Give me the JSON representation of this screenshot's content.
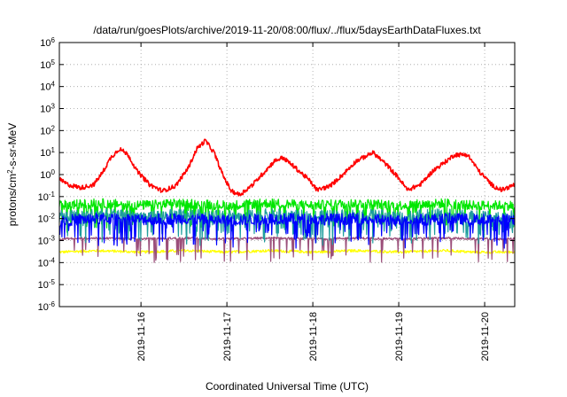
{
  "chart_data": {
    "type": "line",
    "title": "/data/run/goesPlots/archive/2019-11-20/08:00/flux/../flux/5daysEarthDataFluxes.txt",
    "xlabel": "Coordinated Universal Time (UTC)",
    "ylabel": {
      "base": "protons/cm",
      "sup": "2",
      "rest": "-s-sr-MeV"
    },
    "y_scale": "log",
    "ylim": [
      1e-06,
      1000000.0
    ],
    "y_ticks": [
      {
        "base": "10",
        "exp": "-6",
        "value": 1e-06
      },
      {
        "base": "10",
        "exp": "-5",
        "value": 1e-05
      },
      {
        "base": "10",
        "exp": "-4",
        "value": 0.0001
      },
      {
        "base": "10",
        "exp": "-3",
        "value": 0.001
      },
      {
        "base": "10",
        "exp": "-2",
        "value": 0.01
      },
      {
        "base": "10",
        "exp": "-1",
        "value": 0.1
      },
      {
        "base": "10",
        "exp": "0",
        "value": 1
      },
      {
        "base": "10",
        "exp": "1",
        "value": 10.0
      },
      {
        "base": "10",
        "exp": "2",
        "value": 100.0
      },
      {
        "base": "10",
        "exp": "3",
        "value": 1000.0
      },
      {
        "base": "10",
        "exp": "4",
        "value": 10000.0
      },
      {
        "base": "10",
        "exp": "5",
        "value": 100000.0
      },
      {
        "base": "10",
        "exp": "6",
        "value": 1000000.0
      }
    ],
    "x_ticks": [
      {
        "label": "2019-11-16",
        "day": 16
      },
      {
        "label": "2019-11-17",
        "day": 17
      },
      {
        "label": "2019-11-18",
        "day": 18
      },
      {
        "label": "2019-11-19",
        "day": 19
      },
      {
        "label": "2019-11-20",
        "day": 20
      }
    ],
    "xlim_days": [
      15.05,
      20.35
    ],
    "grid": true,
    "series": [
      {
        "color": "#ff0000",
        "points": [
          [
            15.05,
            0.6
          ],
          [
            15.15,
            0.35
          ],
          [
            15.3,
            0.25
          ],
          [
            15.45,
            0.35
          ],
          [
            15.55,
            1.2
          ],
          [
            15.65,
            6
          ],
          [
            15.75,
            15
          ],
          [
            15.85,
            8
          ],
          [
            15.95,
            1.5
          ],
          [
            16.1,
            0.35
          ],
          [
            16.25,
            0.18
          ],
          [
            16.4,
            0.3
          ],
          [
            16.55,
            2
          ],
          [
            16.65,
            15
          ],
          [
            16.75,
            35
          ],
          [
            16.85,
            10
          ],
          [
            16.95,
            1
          ],
          [
            17.05,
            0.18
          ],
          [
            17.15,
            0.12
          ],
          [
            17.3,
            0.35
          ],
          [
            17.45,
            1.5
          ],
          [
            17.55,
            4
          ],
          [
            17.65,
            6
          ],
          [
            17.8,
            2
          ],
          [
            17.95,
            0.6
          ],
          [
            18.05,
            0.2
          ],
          [
            18.2,
            0.3
          ],
          [
            18.35,
            1
          ],
          [
            18.5,
            4
          ],
          [
            18.7,
            10
          ],
          [
            18.85,
            3
          ],
          [
            19.0,
            0.7
          ],
          [
            19.1,
            0.2
          ],
          [
            19.25,
            0.35
          ],
          [
            19.4,
            1.5
          ],
          [
            19.55,
            4
          ],
          [
            19.65,
            8
          ],
          [
            19.8,
            8
          ],
          [
            19.95,
            1.2
          ],
          [
            20.1,
            0.3
          ],
          [
            20.2,
            0.2
          ],
          [
            20.35,
            0.35
          ]
        ]
      },
      {
        "color": "#00e600",
        "points": [
          [
            15.05,
            0.04
          ],
          [
            15.5,
            0.05
          ],
          [
            16.0,
            0.04
          ],
          [
            16.5,
            0.05
          ],
          [
            17.0,
            0.04
          ],
          [
            17.5,
            0.05
          ],
          [
            18.0,
            0.04
          ],
          [
            18.5,
            0.05
          ],
          [
            19.0,
            0.04
          ],
          [
            19.55,
            0.05
          ],
          [
            19.85,
            0.04
          ],
          [
            20.35,
            0.04
          ]
        ]
      },
      {
        "color": "#1f9e9e",
        "points": [
          [
            15.05,
            0.012
          ],
          [
            15.5,
            0.015
          ],
          [
            16.0,
            0.012
          ],
          [
            16.5,
            0.015
          ],
          [
            17.0,
            0.012
          ],
          [
            17.5,
            0.015
          ],
          [
            18.0,
            0.012
          ],
          [
            18.5,
            0.015
          ],
          [
            19.0,
            0.012
          ],
          [
            19.55,
            0.015
          ],
          [
            19.85,
            0.012
          ],
          [
            20.35,
            0.012
          ]
        ]
      },
      {
        "color": "#0000ff",
        "points": [
          [
            15.05,
            0.008
          ],
          [
            15.5,
            0.01
          ],
          [
            16.0,
            0.009
          ],
          [
            16.5,
            0.01
          ],
          [
            17.0,
            0.008
          ],
          [
            17.5,
            0.01
          ],
          [
            18.0,
            0.009
          ],
          [
            18.5,
            0.01
          ],
          [
            19.0,
            0.008
          ],
          [
            19.55,
            0.01
          ],
          [
            19.85,
            0.009
          ],
          [
            20.35,
            0.009
          ]
        ]
      },
      {
        "color": "#ffff00",
        "points": [
          [
            15.05,
            0.0003
          ],
          [
            15.5,
            0.00035
          ],
          [
            16.0,
            0.0003
          ],
          [
            16.5,
            0.00035
          ],
          [
            17.0,
            0.0003
          ],
          [
            17.5,
            0.00035
          ],
          [
            18.0,
            0.0003
          ],
          [
            18.5,
            0.00035
          ],
          [
            19.0,
            0.0003
          ],
          [
            19.55,
            0.00035
          ],
          [
            19.85,
            0.0003
          ],
          [
            20.35,
            0.0003
          ]
        ]
      },
      {
        "color": "#9b4f7a",
        "points": [
          [
            15.05,
            0.0012
          ],
          [
            15.5,
            0.0013
          ],
          [
            16.0,
            0.0012
          ],
          [
            16.5,
            0.0013
          ],
          [
            17.0,
            0.0012
          ],
          [
            17.5,
            0.0013
          ],
          [
            18.0,
            0.0012
          ],
          [
            18.5,
            0.0013
          ],
          [
            19.0,
            0.0012
          ],
          [
            19.55,
            0.0013
          ],
          [
            19.85,
            0.0012
          ],
          [
            20.35,
            0.0012
          ]
        ]
      }
    ]
  }
}
